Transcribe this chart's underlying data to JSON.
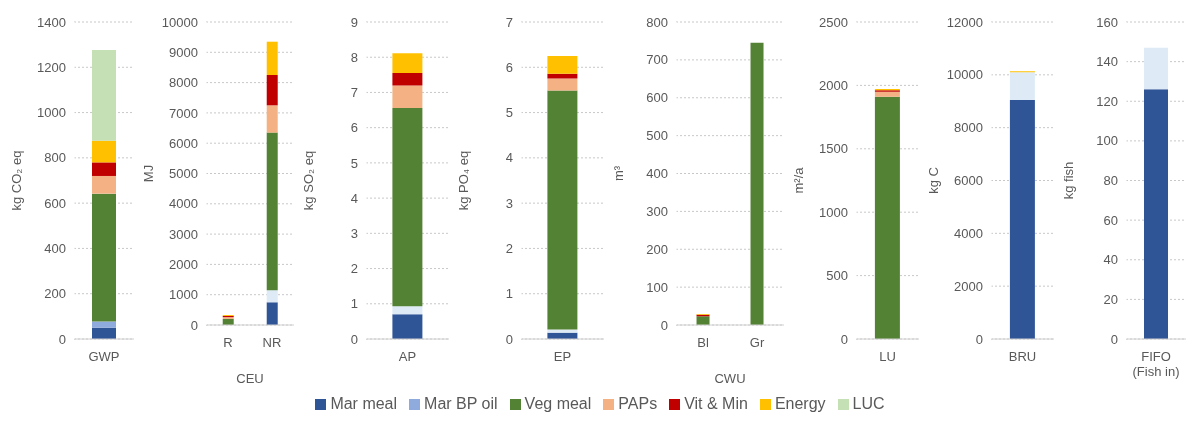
{
  "chart_data": [
    {
      "type": "bar",
      "stacked": true,
      "categories": [
        "GWP"
      ],
      "ylabel": "kg CO₂ eq",
      "ylim": [
        0,
        1400
      ],
      "yticks": [
        0,
        200,
        400,
        600,
        800,
        1000,
        1200,
        1400
      ],
      "grid": "y",
      "legend": "bottom",
      "series": [
        {
          "name": "Mar meal",
          "color": "#2f5597",
          "values": [
            50
          ]
        },
        {
          "name": "Mar BP oil",
          "color": "#8faadc",
          "values": [
            27
          ]
        },
        {
          "name": "Veg meal",
          "color": "#548235",
          "values": [
            565
          ]
        },
        {
          "name": "PAPs",
          "color": "#f4b183",
          "values": [
            78
          ]
        },
        {
          "name": "Vit & Min",
          "color": "#c00000",
          "values": [
            60
          ]
        },
        {
          "name": "Energy",
          "color": "#ffc000",
          "values": [
            96
          ]
        },
        {
          "name": "LUC",
          "color": "#c5e0b4",
          "values": [
            400
          ]
        }
      ]
    },
    {
      "type": "bar",
      "stacked": true,
      "categories": [
        "R",
        "NR"
      ],
      "xlabel": "CEU",
      "ylabel": "MJ",
      "ylim": [
        0,
        10000
      ],
      "yticks": [
        0,
        1000,
        2000,
        3000,
        4000,
        5000,
        6000,
        7000,
        8000,
        9000,
        10000
      ],
      "grid": "y",
      "series": [
        {
          "color": "#2f5597",
          "values": [
            null,
            750
          ]
        },
        {
          "color": "#deebf7",
          "values": [
            null,
            400
          ]
        },
        {
          "color": "#548235",
          "values": [
            200,
            5200
          ]
        },
        {
          "color": "#f4b183",
          "values": [
            60,
            900
          ]
        },
        {
          "color": "#c00000",
          "values": [
            40,
            1000
          ]
        },
        {
          "color": "#ffc000",
          "values": [
            30,
            1100
          ]
        }
      ]
    },
    {
      "type": "bar",
      "stacked": true,
      "categories": [
        "AP"
      ],
      "ylabel": "kg SO₂ eq",
      "ylim": [
        0,
        9
      ],
      "yticks": [
        0,
        1,
        2,
        3,
        4,
        5,
        6,
        7,
        8,
        9
      ],
      "grid": "y",
      "series": [
        {
          "color": "#2f5597",
          "values": [
            0.7
          ]
        },
        {
          "color": "#deebf7",
          "values": [
            0.23
          ]
        },
        {
          "color": "#548235",
          "values": [
            5.63
          ]
        },
        {
          "color": "#f4b183",
          "values": [
            0.64
          ]
        },
        {
          "color": "#c00000",
          "values": [
            0.35
          ]
        },
        {
          "color": "#ffc000",
          "values": [
            0.56
          ]
        }
      ]
    },
    {
      "type": "bar",
      "stacked": true,
      "categories": [
        "EP"
      ],
      "ylabel": "kg PO₄ eq",
      "ylim": [
        0,
        7
      ],
      "yticks": [
        0,
        1,
        2,
        3,
        4,
        5,
        6,
        7
      ],
      "grid": "y",
      "series": [
        {
          "color": "#2f5597",
          "values": [
            0.14
          ]
        },
        {
          "color": "#deebf7",
          "values": [
            0.07
          ]
        },
        {
          "color": "#548235",
          "values": [
            5.28
          ]
        },
        {
          "color": "#f4b183",
          "values": [
            0.26
          ]
        },
        {
          "color": "#c00000",
          "values": [
            0.11
          ]
        },
        {
          "color": "#ffc000",
          "values": [
            0.39
          ]
        }
      ]
    },
    {
      "type": "bar",
      "stacked": true,
      "categories": [
        "Bl",
        "Gr"
      ],
      "xlabel": "CWU",
      "ylabel": "m³",
      "ylim": [
        0,
        800
      ],
      "yticks": [
        0,
        100,
        200,
        300,
        400,
        500,
        600,
        700,
        800
      ],
      "grid": "y",
      "series": [
        {
          "color": "#548235",
          "values": [
            23,
            745
          ]
        },
        {
          "color": "#c00000",
          "values": [
            4,
            null
          ]
        },
        {
          "color": "#ffc000",
          "values": [
            2,
            null
          ]
        }
      ]
    },
    {
      "type": "bar",
      "stacked": true,
      "categories": [
        "LU"
      ],
      "ylabel": "m²/a",
      "ylim": [
        0,
        2500
      ],
      "yticks": [
        0,
        500,
        1000,
        1500,
        2000,
        2500
      ],
      "grid": "y",
      "series": [
        {
          "color": "#548235",
          "values": [
            1910
          ]
        },
        {
          "color": "#f4b183",
          "values": [
            40
          ]
        },
        {
          "color": "#c00000",
          "values": [
            12
          ]
        },
        {
          "color": "#ffc000",
          "values": [
            10
          ]
        }
      ]
    },
    {
      "type": "bar",
      "stacked": true,
      "categories": [
        "BRU"
      ],
      "ylabel": "kg C",
      "ylim": [
        0,
        12000
      ],
      "yticks": [
        0,
        2000,
        4000,
        6000,
        8000,
        10000,
        12000
      ],
      "grid": "y",
      "series": [
        {
          "color": "#2f5597",
          "values": [
            9050
          ]
        },
        {
          "color": "#deebf7",
          "values": [
            1050
          ]
        },
        {
          "color": "#ffc000",
          "values": [
            40
          ]
        }
      ]
    },
    {
      "type": "bar",
      "stacked": true,
      "categories": [
        "FIFO (Fish in)"
      ],
      "ylabel": "kg fish",
      "ylim": [
        0,
        160
      ],
      "yticks": [
        0,
        20,
        40,
        60,
        80,
        100,
        120,
        140,
        160
      ],
      "grid": "y",
      "series": [
        {
          "color": "#2f5597",
          "values": [
            126
          ]
        },
        {
          "color": "#deebf7",
          "values": [
            21
          ]
        }
      ]
    }
  ]
}
